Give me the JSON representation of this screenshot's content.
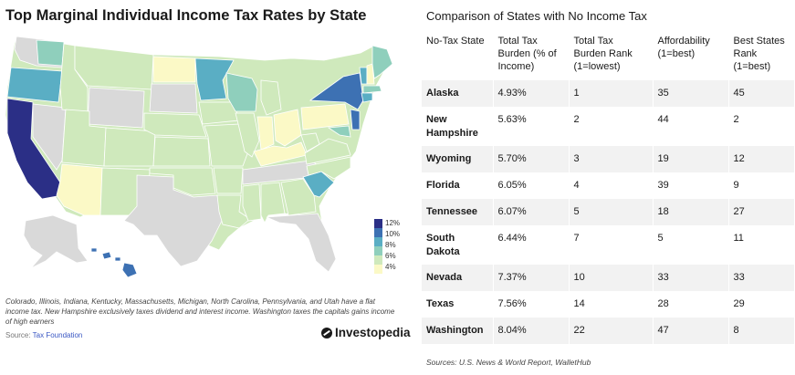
{
  "map": {
    "title": "Top Marginal Individual Income Tax Rates by State",
    "footnote": "Colorado, Illinois, Indiana, Kentucky, Massachusetts, Michigan, North Carolina, Pennsylvania, and Utah have a flat income tax. New Hampshire exclusively taxes dividend and interest income. Washington taxes the capitals gains income of high earners",
    "source_label": "Source:",
    "source_name": "Tax Foundation",
    "brand": "Investopedia",
    "colors": {
      "c12": "#2b2f86",
      "c10": "#3d71b3",
      "c8": "#5aaec4",
      "c6": "#8fcfbc",
      "c4": "#cfe9bc",
      "c2": "#fbf9c6",
      "none": "#d9d9d9"
    }
  },
  "chart_data": {
    "type": "choropleth",
    "title": "Top Marginal Individual Income Tax Rates by State",
    "legend": {
      "entries": [
        "12%",
        "10%",
        "8%",
        "6%",
        "4%"
      ],
      "placement": "bottom-right"
    }
  },
  "table": {
    "title": "Comparison of States with No Income Tax",
    "headers": [
      "No-Tax State",
      "Total Tax Burden (% of Income)",
      "Total Tax Burden Rank (1=lowest)",
      "Affordability (1=best)",
      "Best States Rank (1=best)"
    ],
    "rows": [
      [
        "Alaska",
        "4.93%",
        "1",
        "35",
        "45"
      ],
      [
        "New Hampshire",
        "5.63%",
        "2",
        "44",
        "2"
      ],
      [
        "Wyoming",
        "5.70%",
        "3",
        "19",
        "12"
      ],
      [
        "Florida",
        "6.05%",
        "4",
        "39",
        "9"
      ],
      [
        "Tennessee",
        "6.07%",
        "5",
        "18",
        "27"
      ],
      [
        "South Dakota",
        "6.44%",
        "7",
        "5",
        "11"
      ],
      [
        "Nevada",
        "7.37%",
        "10",
        "33",
        "33"
      ],
      [
        "Texas",
        "7.56%",
        "14",
        "28",
        "29"
      ],
      [
        "Washington",
        "8.04%",
        "22",
        "47",
        "8"
      ]
    ],
    "sources": "Sources: U.S. News & World Report, WalletHub"
  }
}
